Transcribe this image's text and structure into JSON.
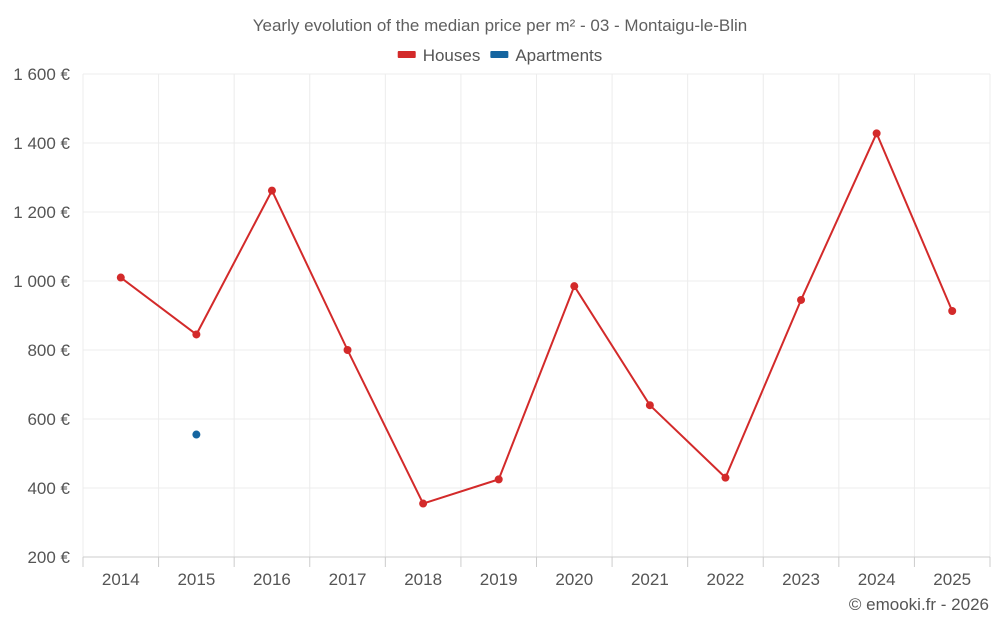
{
  "chart_data": {
    "type": "line",
    "title": "Yearly evolution of the median price per m² - 03 - Montaigu-le-Blin",
    "categories": [
      "2014",
      "2015",
      "2016",
      "2017",
      "2018",
      "2019",
      "2020",
      "2021",
      "2022",
      "2023",
      "2024",
      "2025"
    ],
    "series": [
      {
        "name": "Houses",
        "color": "#d32a2a",
        "values": [
          1010,
          845,
          1262,
          800,
          355,
          425,
          985,
          640,
          430,
          945,
          1428,
          913
        ]
      },
      {
        "name": "Apartments",
        "color": "#1565a0",
        "values": [
          null,
          555,
          null,
          null,
          null,
          null,
          null,
          null,
          null,
          null,
          null,
          null
        ]
      }
    ],
    "ylim": [
      200,
      1600
    ],
    "yticks": [
      200,
      400,
      600,
      800,
      1000,
      1200,
      1400,
      1600
    ],
    "ytick_labels": [
      "200 €",
      "400 €",
      "600 €",
      "800 €",
      "1 000 €",
      "1 200 €",
      "1 400 €",
      "1 600 €"
    ],
    "xlabel": "",
    "ylabel": "",
    "grid": true,
    "legend_position": "top-center"
  },
  "credit": "© emooki.fr - 2026"
}
